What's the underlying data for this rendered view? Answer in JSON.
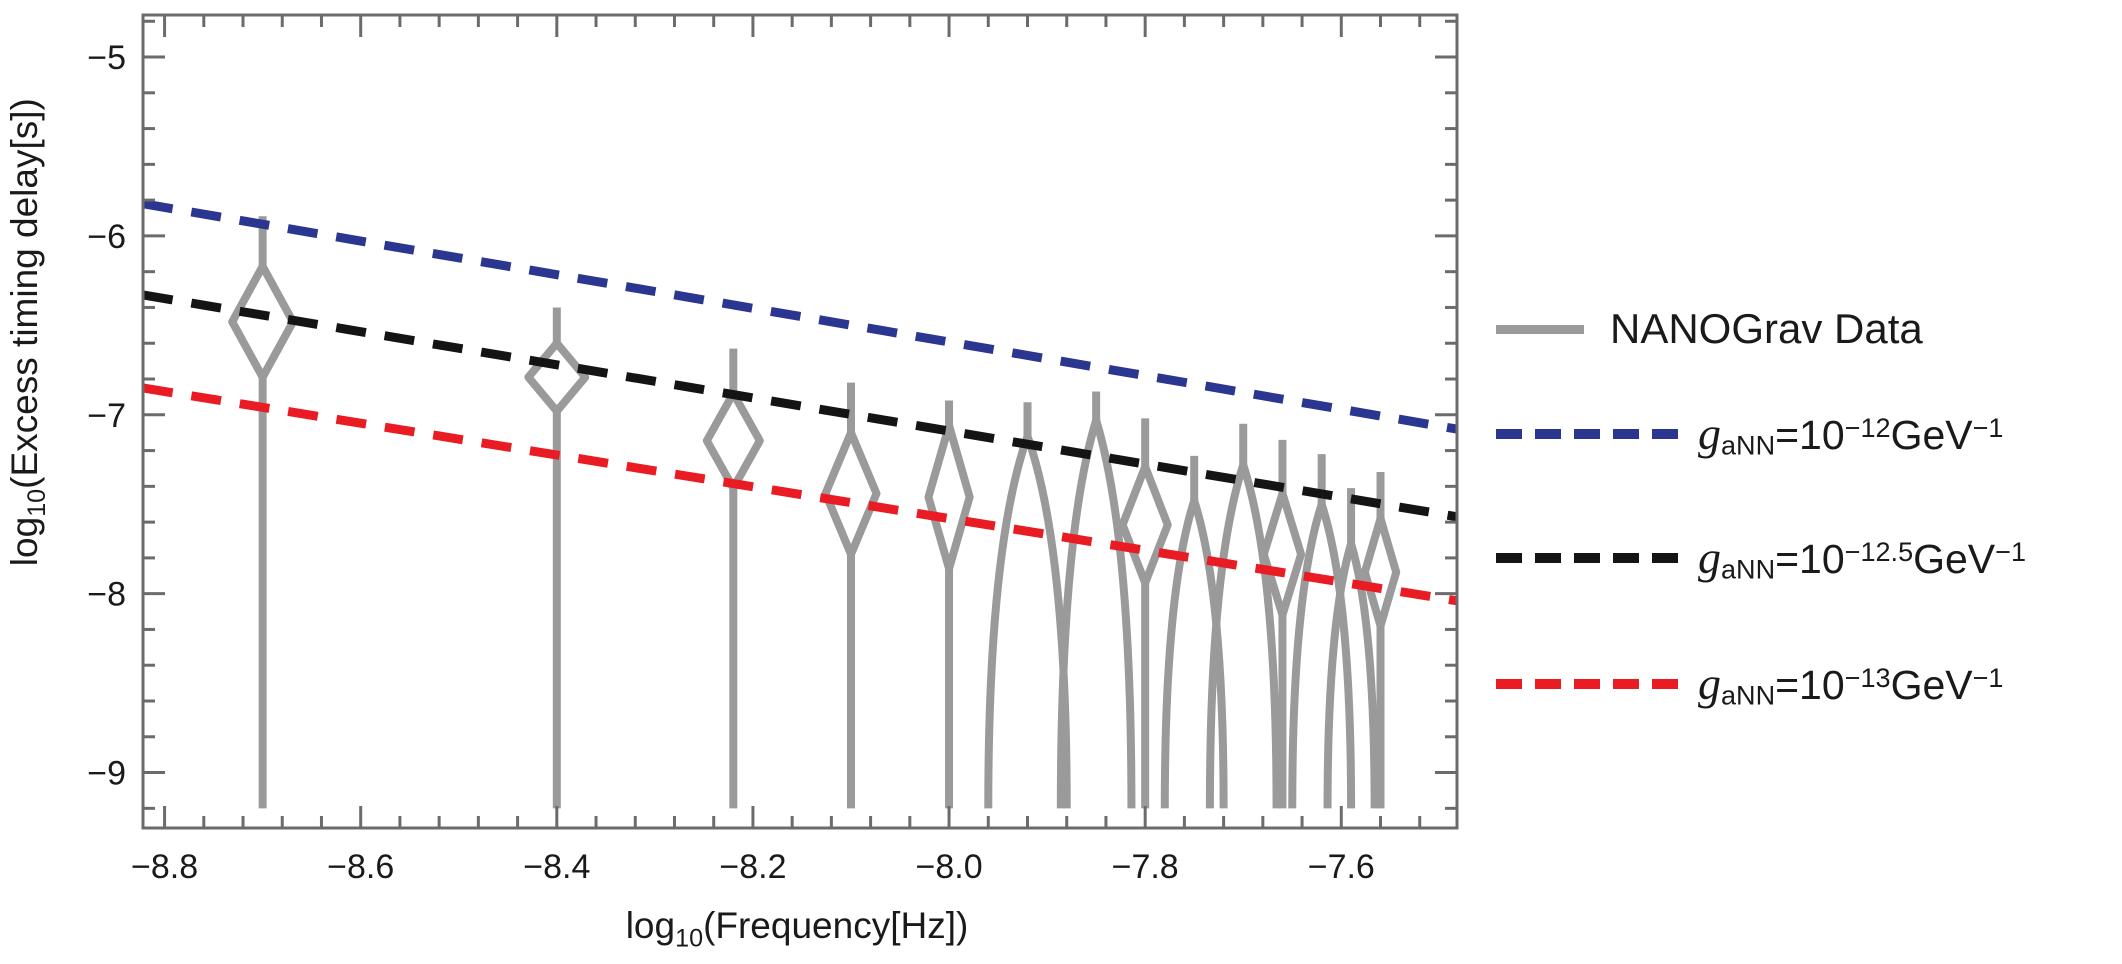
{
  "page": {
    "background": "#ffffff"
  },
  "chart_data": {
    "type": "line",
    "title": "",
    "xlabel": {
      "prefix": "log",
      "sub": "10",
      "rest": "(Frequency[Hz])"
    },
    "ylabel": {
      "prefix": "log",
      "sub": "10",
      "rest": "(Excess timing delay[s])"
    },
    "xlim": [
      -8.822,
      -7.482
    ],
    "ylim": [
      -9.31,
      -4.765
    ],
    "grid": false,
    "frame_color": "#6b6b6b",
    "tick_label_color": "#1a1a1a",
    "x_ticks": {
      "major_values": [
        -8.8,
        -8.6,
        -8.4,
        -8.2,
        -8.0,
        -7.8,
        -7.6
      ],
      "major_labels": [
        "−8.8",
        "−8.6",
        "−8.4",
        "−8.2",
        "−8.0",
        "−7.8",
        "−7.6"
      ],
      "minor_step": 0.04
    },
    "y_ticks": {
      "major_values": [
        -5,
        -6,
        -7,
        -8,
        -9
      ],
      "major_labels": [
        "−5",
        "−6",
        "−7",
        "−8",
        "−9"
      ],
      "minor_step": 0.2
    },
    "series": [
      {
        "name": "NANOGrav Data",
        "type": "violin",
        "color": "#9a9a9a",
        "bottom": -9.2,
        "violins": [
          {
            "x": -8.7,
            "top": -5.89,
            "shape": "closed",
            "d_top": -6.17,
            "d_bot": -6.79,
            "hw": 0.031
          },
          {
            "x": -8.4,
            "top": -6.4,
            "shape": "closed",
            "d_top": -6.6,
            "d_bot": -6.98,
            "hw": 0.029
          },
          {
            "x": -8.22,
            "top": -6.63,
            "shape": "closed",
            "d_top": -6.88,
            "d_bot": -7.41,
            "hw": 0.027
          },
          {
            "x": -8.1,
            "top": -6.82,
            "shape": "closed",
            "d_top": -7.1,
            "d_bot": -7.78,
            "hw": 0.026
          },
          {
            "x": -8.0,
            "top": -6.92,
            "shape": "closed",
            "d_top": -7.06,
            "d_bot": -7.86,
            "hw": 0.021
          },
          {
            "x": -7.92,
            "top": -6.93,
            "shape": "open",
            "split": -7.12,
            "spread": 0.04
          },
          {
            "x": -7.85,
            "top": -6.87,
            "shape": "open",
            "split": -7.03,
            "spread": 0.036
          },
          {
            "x": -7.8,
            "top": -7.02,
            "shape": "closed",
            "d_top": -7.29,
            "d_bot": -7.94,
            "hw": 0.023
          },
          {
            "x": -7.75,
            "top": -7.23,
            "shape": "open",
            "split": -7.48,
            "spread": 0.03
          },
          {
            "x": -7.7,
            "top": -7.05,
            "shape": "open",
            "split": -7.28,
            "spread": 0.034
          },
          {
            "x": -7.66,
            "top": -7.14,
            "shape": "closed",
            "d_top": -7.44,
            "d_bot": -8.12,
            "hw": 0.019
          },
          {
            "x": -7.62,
            "top": -7.22,
            "shape": "open",
            "split": -7.5,
            "spread": 0.03
          },
          {
            "x": -7.59,
            "top": -7.41,
            "shape": "open",
            "split": -7.72,
            "spread": 0.024
          },
          {
            "x": -7.56,
            "top": -7.32,
            "shape": "closed",
            "d_top": -7.58,
            "d_bot": -8.18,
            "hw": 0.016
          }
        ]
      },
      {
        "name": "gaNN=10^-12 GeV^-1",
        "type": "dashed_line",
        "color": "#2b3690",
        "points": [
          [
            -8.822,
            -5.82
          ],
          [
            -7.482,
            -7.08
          ]
        ]
      },
      {
        "name": "gaNN=10^-12.5 GeV^-1",
        "type": "dashed_line",
        "color": "#141414",
        "points": [
          [
            -8.822,
            -6.33
          ],
          [
            -7.482,
            -7.57
          ]
        ]
      },
      {
        "name": "gaNN=10^-13 GeV^-1",
        "type": "dashed_line",
        "color": "#e91c23",
        "points": [
          [
            -8.822,
            -6.85
          ],
          [
            -7.482,
            -8.04
          ]
        ]
      }
    ],
    "legend": {
      "position": "right-outside",
      "entries": [
        {
          "marker": "solid",
          "color": "#9a9a9a",
          "label": "NANOGrav Data",
          "parts": [
            {
              "t": "NANOGrav Data"
            }
          ]
        },
        {
          "marker": "dashed",
          "color": "#2b3690",
          "label": "gaNN=10^-12 GeV^-1",
          "parts": [
            {
              "t": "g",
              "v": true
            },
            {
              "t": "aNN",
              "s": "sub"
            },
            {
              "t": "=10"
            },
            {
              "t": "−12",
              "s": "sup"
            },
            {
              "t": "GeV"
            },
            {
              "t": "−1",
              "s": "sup"
            }
          ]
        },
        {
          "marker": "dashed",
          "color": "#141414",
          "label": "gaNN=10^-12.5 GeV^-1",
          "parts": [
            {
              "t": "g",
              "v": true
            },
            {
              "t": "aNN",
              "s": "sub"
            },
            {
              "t": "=10"
            },
            {
              "t": "−12.5",
              "s": "sup"
            },
            {
              "t": "GeV"
            },
            {
              "t": "−1",
              "s": "sup"
            }
          ]
        },
        {
          "marker": "dashed",
          "color": "#e91c23",
          "label": "gaNN=10^-13 GeV^-1",
          "parts": [
            {
              "t": "g",
              "v": true
            },
            {
              "t": "aNN",
              "s": "sub"
            },
            {
              "t": "=10"
            },
            {
              "t": "−13",
              "s": "sup"
            },
            {
              "t": "GeV"
            },
            {
              "t": "−1",
              "s": "sup"
            }
          ]
        }
      ]
    }
  }
}
